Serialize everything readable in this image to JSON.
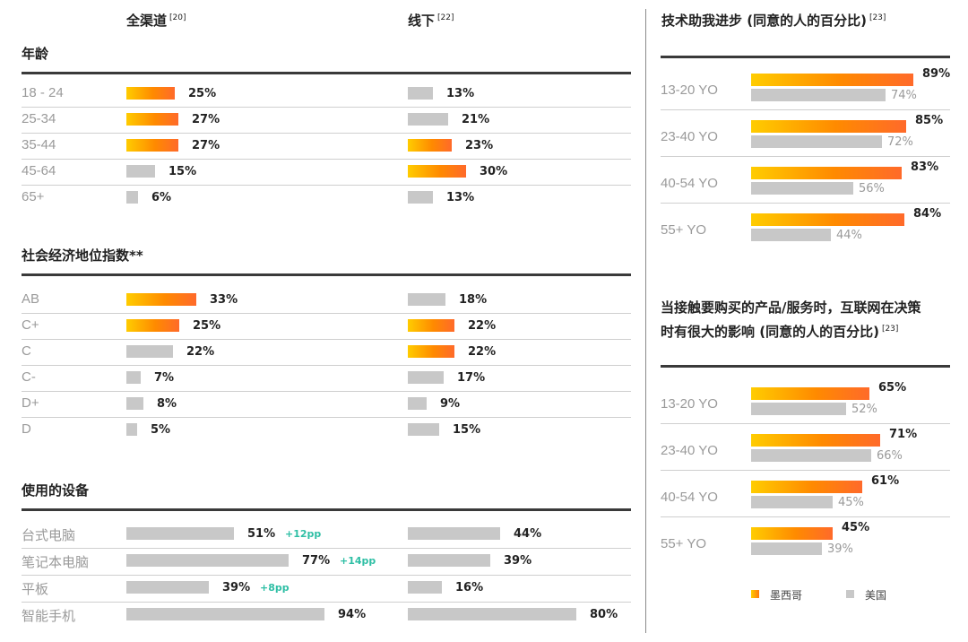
{
  "headers": {
    "omni": {
      "label": "全渠道",
      "ref": "[20]"
    },
    "offline": {
      "label": "线下",
      "ref": "[22]"
    },
    "tech": {
      "label": "技术助我进步 (同意的人的百分比)",
      "ref": "[23]"
    },
    "internet_line1": "当接触要购买的产品/服务时，互联网在决策",
    "internet_line2": "时有很大的影响 (同意的人的百分比)",
    "internet_ref": "[23]"
  },
  "legend": {
    "mexico": "墨西哥",
    "usa": "美国"
  },
  "colors": {
    "orange_start": "#ffcc00",
    "orange_end": "#ff6a2a",
    "gray": "#c8c8c8",
    "pp": "#2fbfa5"
  },
  "chart_data": [
    {
      "type": "bar",
      "title": "年龄",
      "categories": [
        "18 - 24",
        "25-34",
        "35-44",
        "45-64",
        "65+"
      ],
      "series": [
        {
          "name": "全渠道",
          "values": [
            25,
            27,
            27,
            15,
            6
          ],
          "highlight": [
            true,
            true,
            true,
            false,
            false
          ]
        },
        {
          "name": "线下",
          "values": [
            13,
            21,
            23,
            30,
            13
          ],
          "highlight": [
            false,
            false,
            true,
            true,
            false
          ]
        }
      ]
    },
    {
      "type": "bar",
      "title": "社会经济地位指数**",
      "categories": [
        "AB",
        "C+",
        "C",
        "C-",
        "D+",
        "D"
      ],
      "series": [
        {
          "name": "全渠道",
          "values": [
            33,
            25,
            22,
            7,
            8,
            5
          ],
          "highlight": [
            true,
            true,
            false,
            false,
            false,
            false
          ]
        },
        {
          "name": "线下",
          "values": [
            18,
            22,
            22,
            17,
            9,
            15
          ],
          "highlight": [
            false,
            true,
            true,
            false,
            false,
            false
          ]
        }
      ]
    },
    {
      "type": "bar",
      "title": "使用的设备",
      "categories": [
        "台式电脑",
        "笔记本电脑",
        "平板",
        "智能手机"
      ],
      "series": [
        {
          "name": "全渠道",
          "values": [
            51,
            77,
            39,
            94
          ],
          "delta": [
            "+12pp",
            "+14pp",
            "+8pp",
            ""
          ]
        },
        {
          "name": "线下",
          "values": [
            44,
            39,
            16,
            80
          ]
        }
      ]
    },
    {
      "type": "bar",
      "title": "技术助我进步 (同意的人的百分比)",
      "categories": [
        "13-20 YO",
        "23-40 YO",
        "40-54 YO",
        "55+ YO"
      ],
      "series": [
        {
          "name": "墨西哥",
          "values": [
            89,
            85,
            83,
            84
          ]
        },
        {
          "name": "美国",
          "values": [
            74,
            72,
            56,
            44
          ]
        }
      ]
    },
    {
      "type": "bar",
      "title": "当接触要购买的产品/服务时，互联网在决策时有很大的影响 (同意的人的百分比)",
      "categories": [
        "13-20 YO",
        "23-40 YO",
        "40-54 YO",
        "55+ YO"
      ],
      "series": [
        {
          "name": "墨西哥",
          "values": [
            65,
            71,
            61,
            45
          ]
        },
        {
          "name": "美国",
          "values": [
            52,
            66,
            45,
            39
          ]
        }
      ]
    }
  ]
}
